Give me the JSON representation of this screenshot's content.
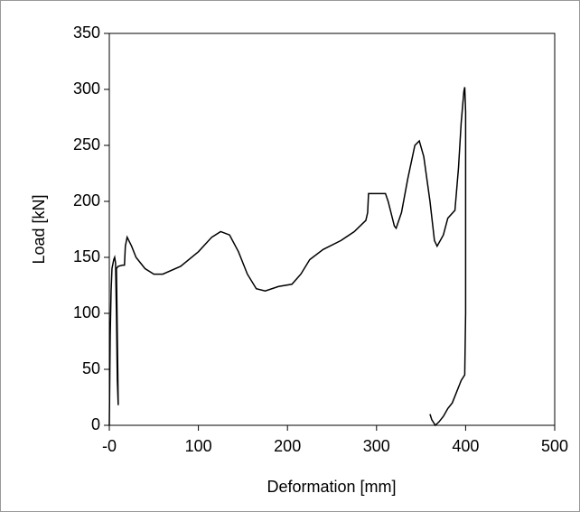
{
  "chart_data": {
    "type": "line",
    "x_label": "Deformation [mm]",
    "y_label": "Load [kN]",
    "x": [
      0,
      1,
      2,
      3,
      5,
      6,
      7,
      8,
      9,
      10,
      9,
      8,
      10,
      15,
      17,
      18,
      20,
      25,
      30,
      40,
      50,
      60,
      80,
      100,
      115,
      125,
      135,
      145,
      155,
      165,
      175,
      190,
      205,
      215,
      225,
      240,
      260,
      275,
      288,
      290,
      291,
      300,
      310,
      313,
      320,
      322,
      328,
      335,
      343,
      348,
      353,
      360,
      365,
      368,
      375,
      380,
      388,
      392,
      395,
      398,
      399,
      400,
      400,
      399,
      395,
      390,
      385,
      380,
      375,
      370,
      366,
      362,
      360
    ],
    "values": [
      0,
      80,
      120,
      140,
      148,
      150,
      145,
      100,
      40,
      18,
      80,
      140,
      142,
      143,
      143,
      160,
      168,
      160,
      150,
      140,
      135,
      135,
      142,
      155,
      168,
      173,
      170,
      155,
      135,
      122,
      120,
      124,
      126,
      135,
      148,
      157,
      165,
      173,
      183,
      190,
      207,
      207,
      207,
      200,
      178,
      176,
      190,
      220,
      250,
      254,
      240,
      200,
      165,
      160,
      170,
      185,
      192,
      230,
      270,
      298,
      302,
      280,
      100,
      45,
      40,
      30,
      20,
      15,
      8,
      3,
      0,
      5,
      10
    ],
    "color": "#000000",
    "xlim": [
      0,
      500
    ],
    "xticks": [
      {
        "value": 0,
        "label": "-0"
      },
      100,
      200,
      300,
      400,
      500
    ],
    "ylim": [
      0,
      350
    ],
    "yticks": [
      0,
      50,
      100,
      150,
      200,
      250,
      300,
      350
    ]
  }
}
